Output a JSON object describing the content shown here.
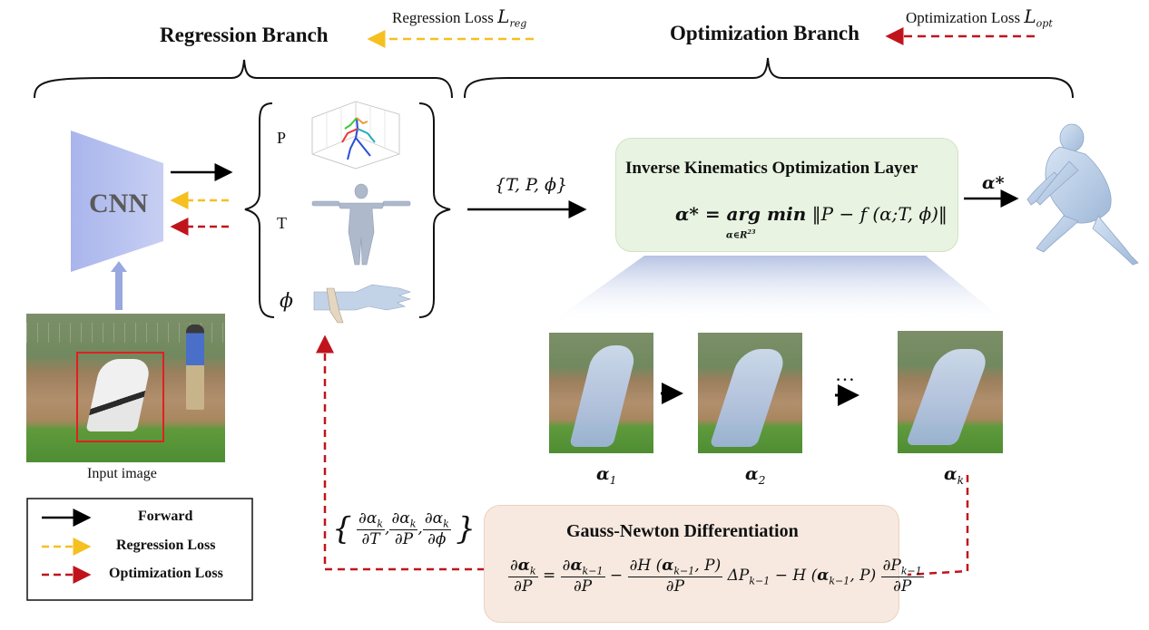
{
  "titles": {
    "regression_branch": "Regression Branch",
    "optimization_branch": "Optimization Branch",
    "regression_loss": "Regression Loss",
    "regression_loss_symbol": "L",
    "regression_loss_sub": "reg",
    "optimization_loss": "Optimization Loss",
    "optimization_loss_symbol": "L",
    "optimization_loss_sub": "opt"
  },
  "cnn": {
    "label": "CNN"
  },
  "input": {
    "caption": "Input image"
  },
  "params": {
    "p": "P",
    "t": "T",
    "phi": "ϕ"
  },
  "set_label": "{T, P, ϕ}",
  "ik_layer": {
    "title": "Inverse Kinematics Optimization Layer",
    "lhs": "α* = arg min",
    "constraint": "α∈R",
    "constraint_sup": "23",
    "objective": "‖P − f (α;T, ϕ)‖"
  },
  "alpha_star": "α*",
  "iterations": {
    "a1": "α",
    "a1_sub": "1",
    "a2": "α",
    "a2_sub": "2",
    "ak": "α",
    "ak_sub": "k",
    "dots": "…"
  },
  "gauss_newton": {
    "title": "Gauss-Newton Differentiation"
  },
  "derivatives": {
    "d_alpha": "∂α",
    "k": "k",
    "dT": "∂T",
    "dP": "∂P",
    "dphi": "∂ϕ"
  },
  "legend": {
    "forward": "Forward",
    "regression": "Regression Loss",
    "optimization": "Optimization Loss"
  },
  "colors": {
    "forward": "#000000",
    "regression": "#f5c020",
    "optimization": "#c0141c",
    "cnn": "#9aa8e0",
    "ik_panel": "#e8f3e1",
    "gn_panel": "#f7e9df"
  }
}
